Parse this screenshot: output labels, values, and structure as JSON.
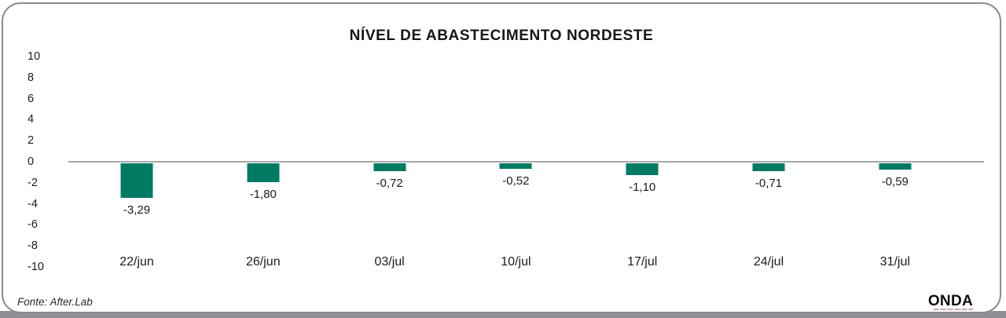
{
  "chart_data": {
    "type": "bar",
    "title": "NÍVEL DE ABASTECIMENTO NORDESTE",
    "categories": [
      "22/jun",
      "26/jun",
      "03/jul",
      "10/jul",
      "17/jul",
      "24/jul",
      "31/jul"
    ],
    "values": [
      -3.29,
      -1.8,
      -0.72,
      -0.52,
      -1.1,
      -0.71,
      -0.59
    ],
    "value_labels": [
      "-3,29",
      "-1,80",
      "-0,72",
      "-0,52",
      "-1,10",
      "-0,71",
      "-0,59"
    ],
    "xlabel": "",
    "ylabel": "",
    "ylim": [
      -10,
      10
    ],
    "yticks": [
      10,
      8,
      6,
      4,
      2,
      0,
      -2,
      -4,
      -6,
      -8,
      -10
    ],
    "grid": false,
    "legend_position": "none",
    "bar_color": "#007a63",
    "zero_line_color": "#a7a7a9"
  },
  "footer": {
    "source": "Fonte: After.Lab",
    "brand": "ONDA"
  },
  "frame": {
    "border_color": "#8b8b92",
    "bottom_strip_color": "#8f9096"
  }
}
